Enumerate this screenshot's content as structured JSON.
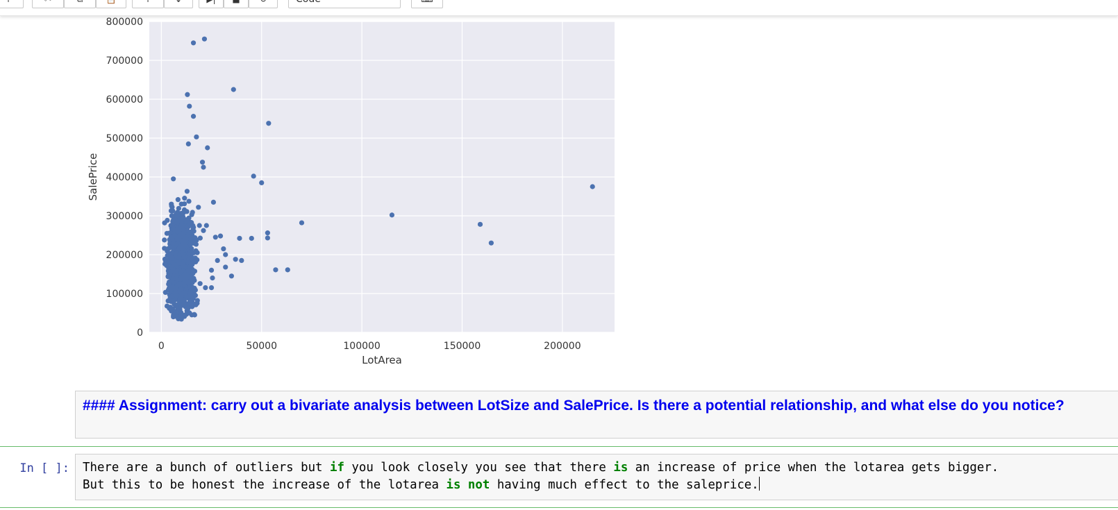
{
  "toolbar": {
    "buttons": [
      {
        "name": "add-cell-button",
        "glyph": "+"
      },
      {
        "name": "cut-button",
        "glyph": "✂"
      },
      {
        "name": "copy-button",
        "glyph": "⧉"
      },
      {
        "name": "paste-button",
        "glyph": "📋"
      },
      {
        "name": "move-up-button",
        "glyph": "↑"
      },
      {
        "name": "move-down-button",
        "glyph": "↓"
      },
      {
        "name": "run-button",
        "glyph": "▶|"
      },
      {
        "name": "stop-button",
        "glyph": "■"
      },
      {
        "name": "restart-button",
        "glyph": "↻"
      },
      {
        "name": "keyboard-button",
        "glyph": "⌨"
      }
    ],
    "cell_type": "Code"
  },
  "chart_data": {
    "type": "scatter",
    "xlabel": "LotArea",
    "ylabel": "SalePrice",
    "xlim": [
      -6000,
      226000
    ],
    "ylim": [
      0,
      800000
    ],
    "xticks": [
      0,
      50000,
      100000,
      150000,
      200000
    ],
    "yticks": [
      0,
      100000,
      200000,
      300000,
      400000,
      500000,
      600000,
      700000,
      800000
    ],
    "grid": true,
    "point_color": "#4c72b0",
    "background": "#eaeaf2",
    "outliers": [
      {
        "x": 16000,
        "y": 745000
      },
      {
        "x": 21500,
        "y": 755000
      },
      {
        "x": 36000,
        "y": 625000
      },
      {
        "x": 13000,
        "y": 612000
      },
      {
        "x": 14000,
        "y": 582000
      },
      {
        "x": 16000,
        "y": 556000
      },
      {
        "x": 53500,
        "y": 538000
      },
      {
        "x": 17500,
        "y": 503000
      },
      {
        "x": 23000,
        "y": 475000
      },
      {
        "x": 13500,
        "y": 485000
      },
      {
        "x": 20500,
        "y": 438000
      },
      {
        "x": 21000,
        "y": 425000
      },
      {
        "x": 46000,
        "y": 402000
      },
      {
        "x": 50000,
        "y": 385000
      },
      {
        "x": 215000,
        "y": 375000
      },
      {
        "x": 26000,
        "y": 335000
      },
      {
        "x": 115000,
        "y": 302000
      },
      {
        "x": 70000,
        "y": 282000
      },
      {
        "x": 159000,
        "y": 278000
      },
      {
        "x": 164500,
        "y": 230000
      },
      {
        "x": 53000,
        "y": 256000
      },
      {
        "x": 53000,
        "y": 243000
      },
      {
        "x": 45000,
        "y": 242000
      },
      {
        "x": 39000,
        "y": 242000
      },
      {
        "x": 57000,
        "y": 161000
      },
      {
        "x": 63000,
        "y": 161000
      },
      {
        "x": 40000,
        "y": 185000
      },
      {
        "x": 37000,
        "y": 188000
      },
      {
        "x": 35000,
        "y": 145000
      },
      {
        "x": 32000,
        "y": 168000
      },
      {
        "x": 31000,
        "y": 215000
      },
      {
        "x": 32000,
        "y": 200000
      },
      {
        "x": 29500,
        "y": 248000
      },
      {
        "x": 27000,
        "y": 245000
      },
      {
        "x": 22500,
        "y": 275000
      },
      {
        "x": 21000,
        "y": 262000
      },
      {
        "x": 19000,
        "y": 275000
      },
      {
        "x": 18500,
        "y": 322000
      },
      {
        "x": 6000,
        "y": 395000
      },
      {
        "x": 5000,
        "y": 330000
      },
      {
        "x": 28000,
        "y": 185000
      },
      {
        "x": 25000,
        "y": 160000
      },
      {
        "x": 25000,
        "y": 115000
      },
      {
        "x": 22000,
        "y": 115000
      },
      {
        "x": 25500,
        "y": 140000
      },
      {
        "x": 17000,
        "y": 95000
      },
      {
        "x": 18000,
        "y": 82000
      },
      {
        "x": 8500,
        "y": 35000
      },
      {
        "x": 6000,
        "y": 40000
      },
      {
        "x": 5000,
        "y": 55000
      },
      {
        "x": 10000,
        "y": 34000
      }
    ]
  },
  "markdown": {
    "text": "#### Assignment: carry out a bivariate analysis between LotSize and SalePrice. Is there a potential relationship, and what else do you notice?"
  },
  "code_cell": {
    "prompt": "In [ ]:",
    "line1": [
      {
        "t": "There are a bunch of outliers but ",
        "kw": false
      },
      {
        "t": "if",
        "kw": true
      },
      {
        "t": " you look closely you see that there ",
        "kw": false
      },
      {
        "t": "is",
        "kw": true
      },
      {
        "t": " an increase of price when the lotarea gets bigger.",
        "kw": false
      }
    ],
    "line2": [
      {
        "t": "But this to be honest the increase of the lotarea ",
        "kw": false
      },
      {
        "t": "is not",
        "kw": true
      },
      {
        "t": " having much effect to the saleprice.",
        "kw": false
      }
    ]
  }
}
